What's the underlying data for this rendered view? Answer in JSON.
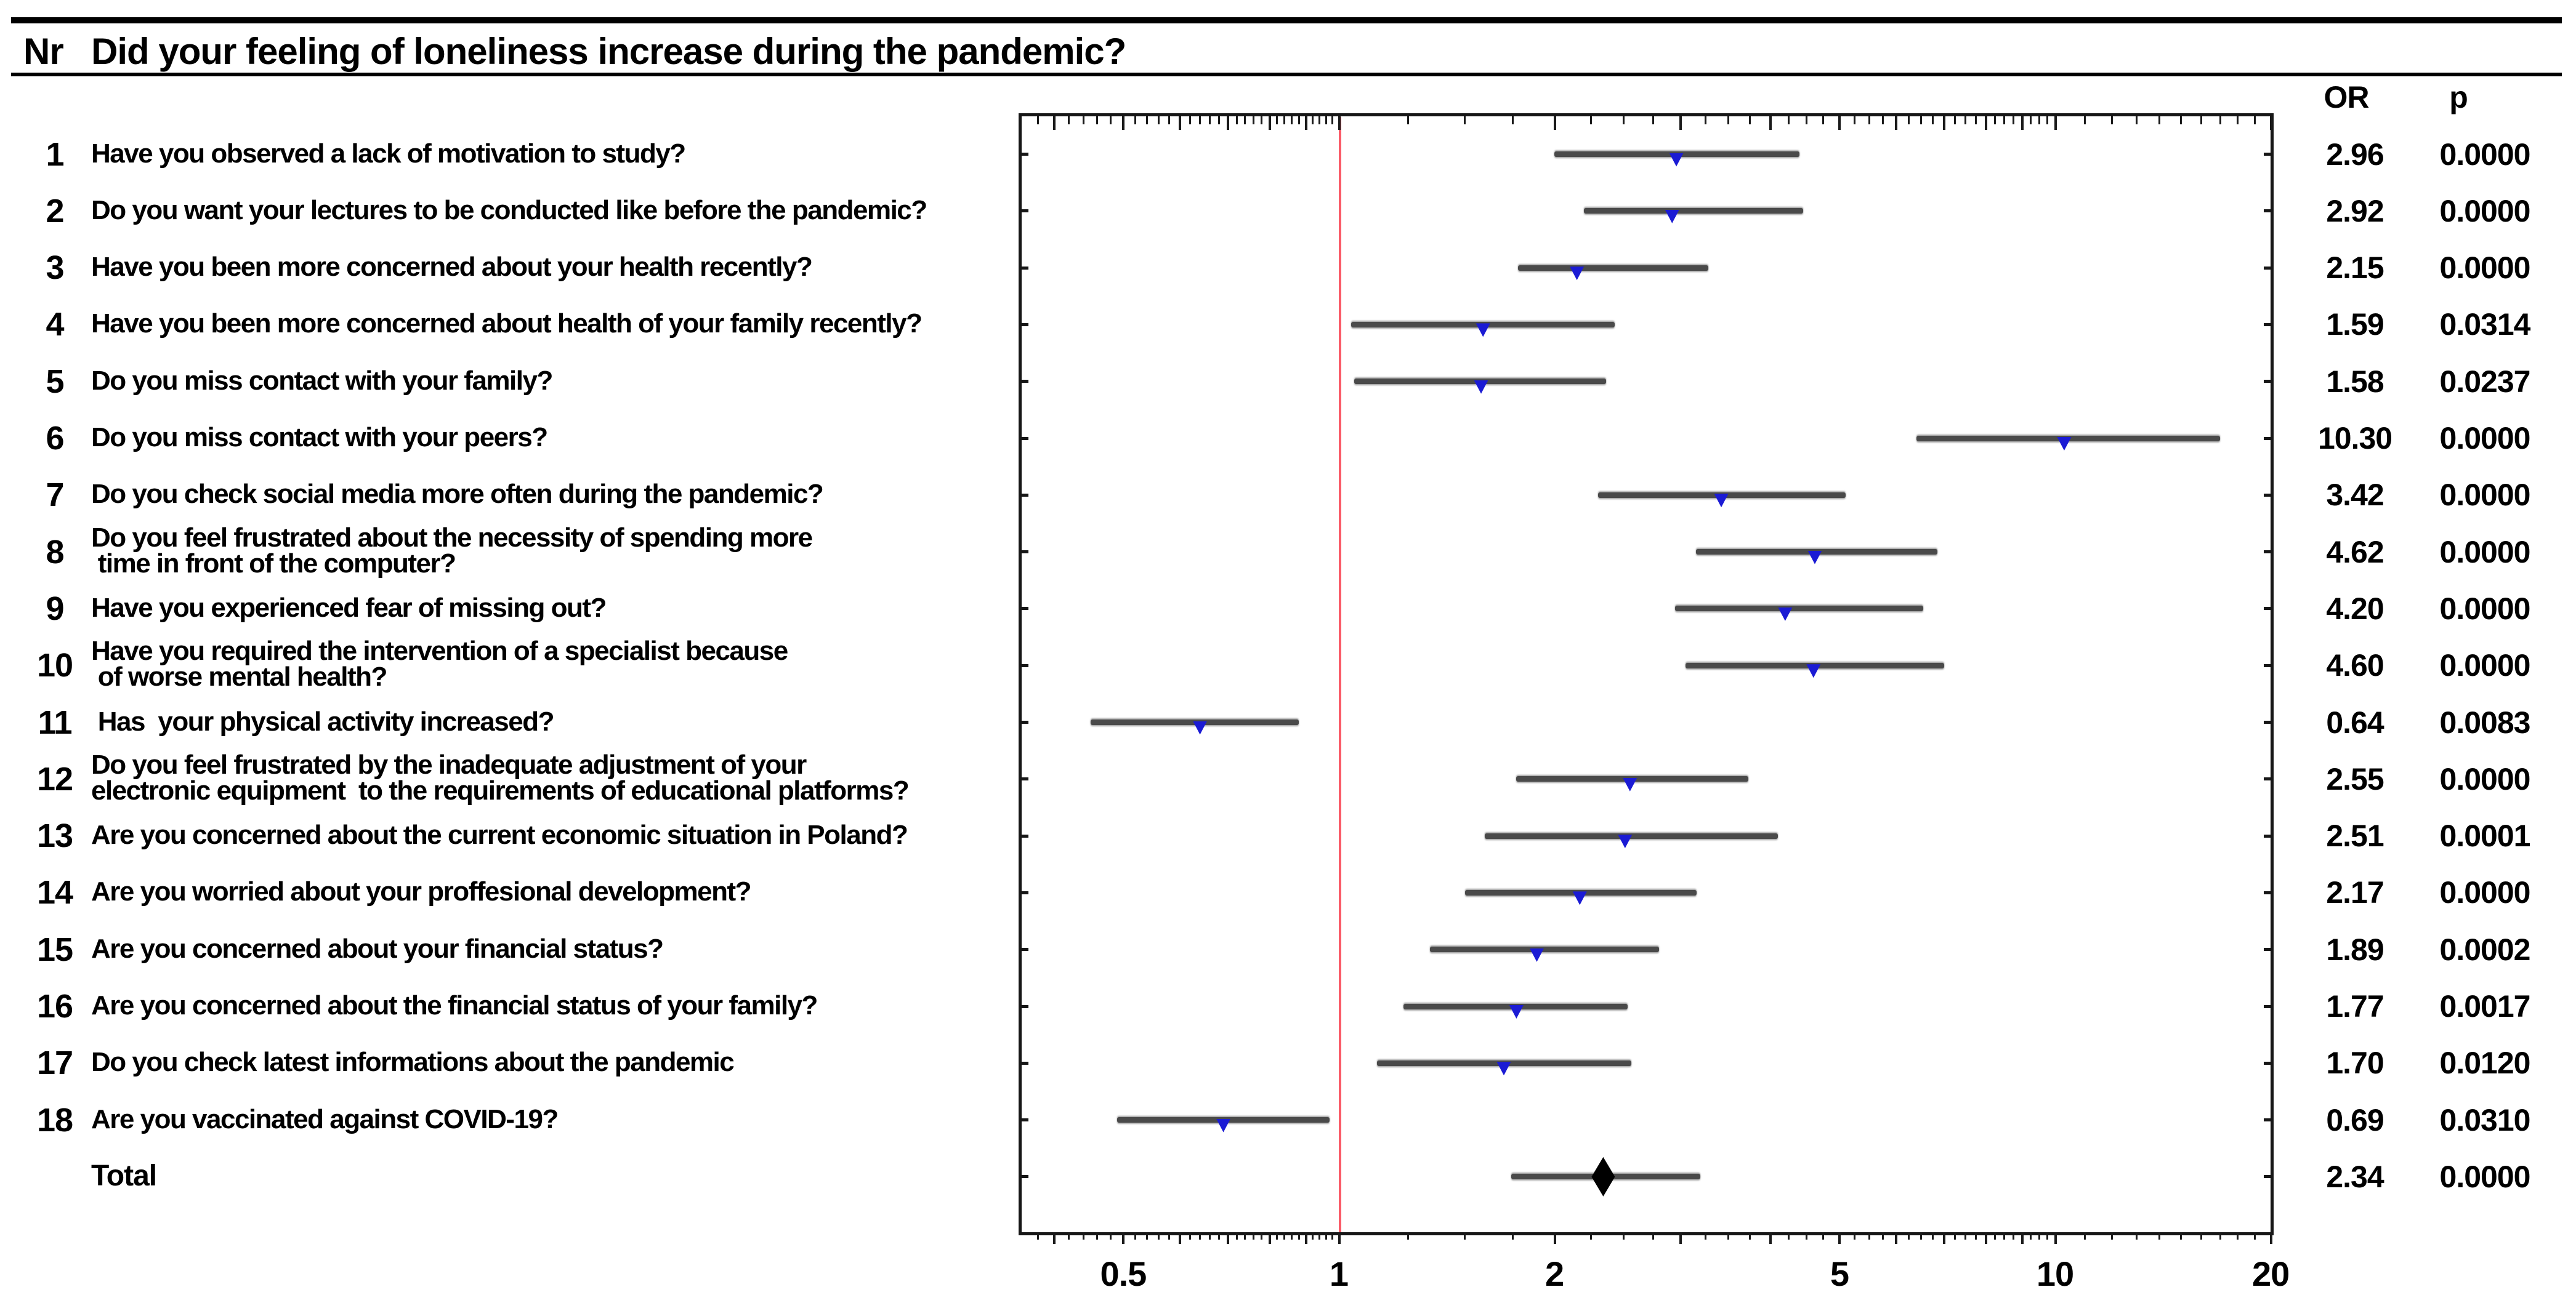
{
  "chart_data": {
    "type": "scatter",
    "variant": "forest-plot-odds-ratios",
    "title_nr": "Nr",
    "title": "Did your feeling of loneliness increase during the pandemic?",
    "or_header": "OR",
    "p_header": "p",
    "x_scale": "log",
    "x_axis": {
      "tick_labels": [
        "0.5",
        "1",
        "2",
        "5",
        "10",
        "20"
      ],
      "tick_values": [
        0.5,
        1,
        2,
        5,
        10,
        20
      ],
      "range_min": 0.357,
      "range_max": 20.0,
      "grid": false
    },
    "reference_line_x": 1,
    "legend": "none",
    "rows": [
      {
        "nr": "1",
        "line1": "Have you observed a lack of motivation to study?",
        "line2": "",
        "or": 2.96,
        "or_label": "2.96",
        "p_label": "0.0000",
        "ci_low": 2.0,
        "ci_high": 4.4,
        "marker": "triangle"
      },
      {
        "nr": "2",
        "line1": "Do you want your lectures to be conducted like before the pandemic?",
        "line2": "",
        "or": 2.92,
        "or_label": "2.92",
        "p_label": "0.0000",
        "ci_low": 2.2,
        "ci_high": 4.45,
        "marker": "triangle"
      },
      {
        "nr": "3",
        "line1": "Have you been more concerned about your health recently?",
        "line2": "",
        "or": 2.15,
        "or_label": "2.15",
        "p_label": "0.0000",
        "ci_low": 1.78,
        "ci_high": 3.28,
        "marker": "triangle"
      },
      {
        "nr": "4",
        "line1": "Have you been more concerned about health of your family recently?",
        "line2": "",
        "or": 1.59,
        "or_label": "1.59",
        "p_label": "0.0314",
        "ci_low": 1.04,
        "ci_high": 2.43,
        "marker": "triangle"
      },
      {
        "nr": "5",
        "line1": "Do you miss contact with your family?",
        "line2": "",
        "or": 1.58,
        "or_label": "1.58",
        "p_label": "0.0237",
        "ci_low": 1.05,
        "ci_high": 2.36,
        "marker": "triangle"
      },
      {
        "nr": "6",
        "line1": "Do you miss contact with your peers?",
        "line2": "",
        "or": 10.3,
        "or_label": "10.30",
        "p_label": "0.0000",
        "ci_low": 6.4,
        "ci_high": 17.0,
        "marker": "triangle"
      },
      {
        "nr": "7",
        "line1": "Do you check social media more often during the pandemic?",
        "line2": "",
        "or": 3.42,
        "or_label": "3.42",
        "p_label": "0.0000",
        "ci_low": 2.3,
        "ci_high": 5.1,
        "marker": "triangle"
      },
      {
        "nr": "8",
        "line1": "Do you feel frustrated about the necessity of spending more",
        "line2": " time in front of the computer?",
        "or": 4.62,
        "or_label": "4.62",
        "p_label": "0.0000",
        "ci_low": 3.15,
        "ci_high": 6.85,
        "marker": "triangle"
      },
      {
        "nr": "9",
        "line1": "Have you experienced fear of missing out?",
        "line2": "",
        "or": 4.2,
        "or_label": "4.20",
        "p_label": "0.0000",
        "ci_low": 2.95,
        "ci_high": 6.55,
        "marker": "triangle"
      },
      {
        "nr": "10",
        "line1": "Have you required the intervention of a specialist because",
        "line2": " of worse mental health?",
        "or": 4.6,
        "or_label": "4.60",
        "p_label": "0.0000",
        "ci_low": 3.05,
        "ci_high": 7.0,
        "marker": "triangle"
      },
      {
        "nr": "11",
        "line1": " Has  your physical activity increased?",
        "line2": "",
        "or": 0.64,
        "or_label": "0.64",
        "p_label": "0.0083",
        "ci_low": 0.45,
        "ci_high": 0.88,
        "marker": "triangle"
      },
      {
        "nr": "12",
        "line1": "Do you feel frustrated by the inadequate adjustment of your",
        "line2": "electronic equipment  to the requirements of educational platforms?",
        "or": 2.55,
        "or_label": "2.55",
        "p_label": "0.0000",
        "ci_low": 1.77,
        "ci_high": 3.73,
        "marker": "triangle"
      },
      {
        "nr": "13",
        "line1": "Are you concerned about the current economic situation in Poland?",
        "line2": "",
        "or": 2.51,
        "or_label": "2.51",
        "p_label": "0.0001",
        "ci_low": 1.6,
        "ci_high": 4.1,
        "marker": "triangle"
      },
      {
        "nr": "14",
        "line1": "Are you worried about your proffesional development?",
        "line2": "",
        "or": 2.17,
        "or_label": "2.17",
        "p_label": "0.0000",
        "ci_low": 1.5,
        "ci_high": 3.16,
        "marker": "triangle"
      },
      {
        "nr": "15",
        "line1": "Are you concerned about your financial status?",
        "line2": "",
        "or": 1.89,
        "or_label": "1.89",
        "p_label": "0.0002",
        "ci_low": 1.34,
        "ci_high": 2.8,
        "marker": "triangle"
      },
      {
        "nr": "16",
        "line1": "Are you concerned about the financial status of your family?",
        "line2": "",
        "or": 1.77,
        "or_label": "1.77",
        "p_label": "0.0017",
        "ci_low": 1.23,
        "ci_high": 2.53,
        "marker": "triangle"
      },
      {
        "nr": "17",
        "line1": "Do you check latest informations about the pandemic",
        "line2": "",
        "or": 1.7,
        "or_label": "1.70",
        "p_label": "0.0120",
        "ci_low": 1.13,
        "ci_high": 2.56,
        "marker": "triangle"
      },
      {
        "nr": "18",
        "line1": "Are you vaccinated against COVID-19?",
        "line2": "",
        "or": 0.69,
        "or_label": "0.69",
        "p_label": "0.0310",
        "ci_low": 0.49,
        "ci_high": 0.97,
        "marker": "triangle"
      },
      {
        "nr": "",
        "line1": "Total",
        "line2": "",
        "or": 2.34,
        "or_label": "2.34",
        "p_label": "0.0000",
        "ci_low": 1.74,
        "ci_high": 3.2,
        "marker": "diamond",
        "is_total": true
      }
    ],
    "colors": {
      "marker_blue": "#1b1bd4",
      "total_marker_black": "#000000",
      "reference_line_red": "#fa5c69",
      "ci_line_gray": "#4a4a4a",
      "frame_black": "#161616"
    }
  }
}
